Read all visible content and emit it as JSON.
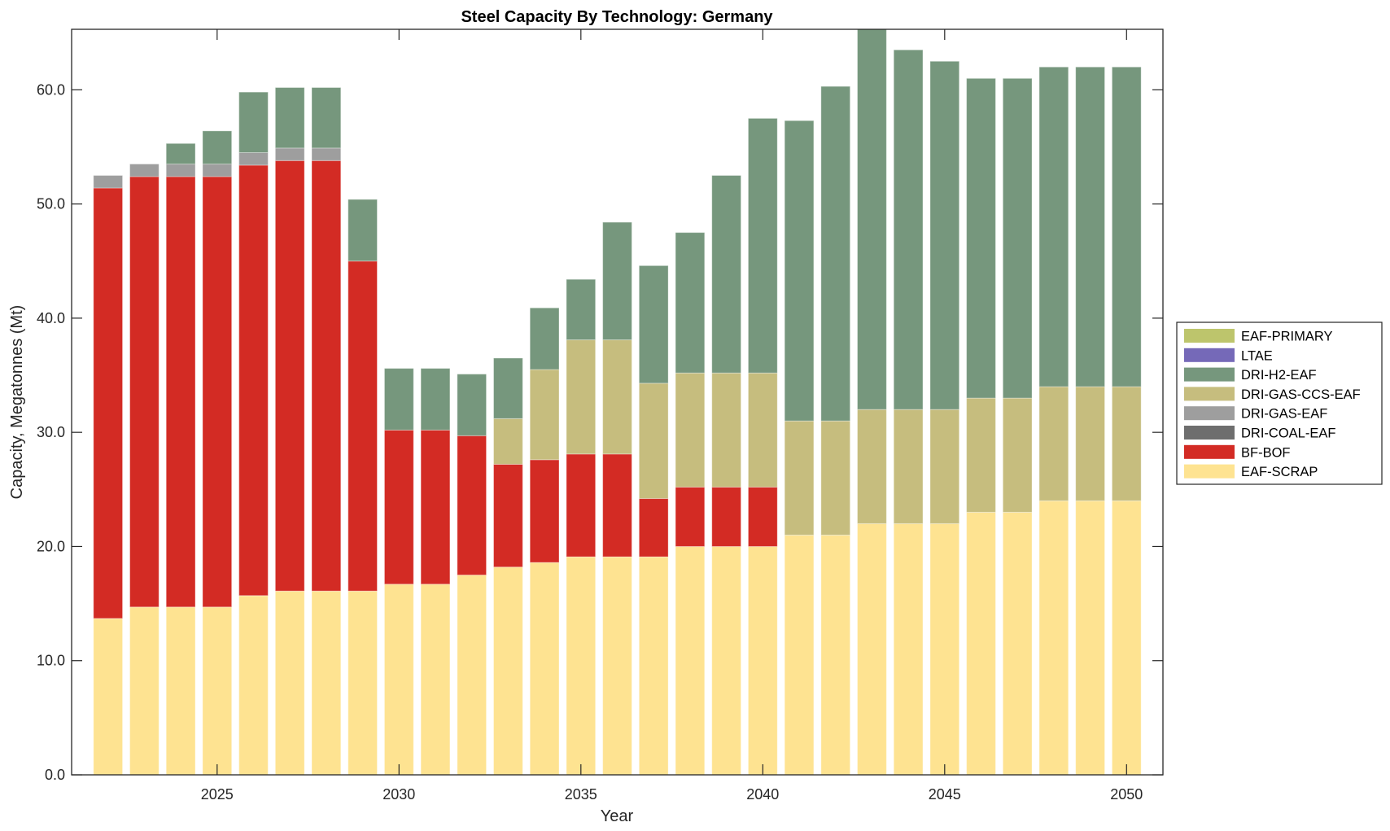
{
  "chart_data": {
    "type": "bar",
    "stacked": true,
    "title": "Steel Capacity By Technology: Germany",
    "xlabel": "Year",
    "ylabel": "Capacity, Megatonnes (Mt)",
    "xlim": [
      2021,
      2051
    ],
    "ylim": [
      0,
      65.3
    ],
    "xticks": [
      2025,
      2030,
      2035,
      2040,
      2045,
      2050
    ],
    "xtick_labels": [
      "2025",
      "2030",
      "2035",
      "2040",
      "2045",
      "2050"
    ],
    "yticks": [
      0,
      10,
      20,
      30,
      40,
      50,
      60
    ],
    "ytick_labels": [
      "0.0",
      "10.0",
      "20.0",
      "30.0",
      "40.0",
      "50.0",
      "60.0"
    ],
    "grid": false,
    "legend_position": "right-outside",
    "categories": [
      2022,
      2023,
      2024,
      2025,
      2026,
      2027,
      2028,
      2029,
      2030,
      2031,
      2032,
      2033,
      2034,
      2035,
      2036,
      2037,
      2038,
      2039,
      2040,
      2041,
      2042,
      2043,
      2044,
      2045,
      2046,
      2047,
      2048,
      2049,
      2050
    ],
    "series": [
      {
        "name": "EAF-SCRAP",
        "color": "#fee391",
        "values": [
          13.7,
          14.7,
          14.7,
          14.7,
          15.7,
          16.1,
          16.1,
          16.1,
          16.7,
          16.7,
          17.5,
          18.2,
          18.6,
          19.1,
          19.1,
          19.1,
          20.0,
          20.0,
          20.0,
          21.0,
          21.0,
          22.0,
          22.0,
          22.0,
          23.0,
          23.0,
          24.0,
          24.0,
          24.0
        ]
      },
      {
        "name": "BF-BOF",
        "color": "#d32b24",
        "values": [
          37.7,
          37.7,
          37.7,
          37.7,
          37.7,
          37.7,
          37.7,
          28.9,
          13.5,
          13.5,
          12.2,
          9.0,
          9.0,
          9.0,
          9.0,
          5.1,
          5.2,
          5.2,
          5.2,
          0,
          0,
          0,
          0,
          0,
          0,
          0,
          0,
          0,
          0
        ]
      },
      {
        "name": "DRI-COAL-EAF",
        "color": "#6e6e6e",
        "values": [
          0,
          0,
          0,
          0,
          0,
          0,
          0,
          0,
          0,
          0,
          0,
          0,
          0,
          0,
          0,
          0,
          0,
          0,
          0,
          0,
          0,
          0,
          0,
          0,
          0,
          0,
          0,
          0,
          0
        ]
      },
      {
        "name": "DRI-GAS-EAF",
        "color": "#9e9e9e",
        "values": [
          1.1,
          1.1,
          1.1,
          1.1,
          1.1,
          1.1,
          1.1,
          0,
          0,
          0,
          0,
          0,
          0,
          0,
          0,
          0,
          0,
          0,
          0,
          0,
          0,
          0,
          0,
          0,
          0,
          0,
          0,
          0,
          0
        ]
      },
      {
        "name": "DRI-GAS-CCS-EAF",
        "color": "#c6bd7e",
        "values": [
          0,
          0,
          0,
          0,
          0,
          0,
          0,
          0,
          0,
          0,
          0,
          4.0,
          7.9,
          10.0,
          10.0,
          10.1,
          10.0,
          10.0,
          10.0,
          10.0,
          10.0,
          10.0,
          10.0,
          10.0,
          10.0,
          10.0,
          10.0,
          10.0,
          10.0
        ]
      },
      {
        "name": "DRI-H2-EAF",
        "color": "#76977d",
        "values": [
          0,
          0,
          1.8,
          2.9,
          5.3,
          5.3,
          5.3,
          5.4,
          5.4,
          5.4,
          5.4,
          5.3,
          5.4,
          5.3,
          10.3,
          10.3,
          12.3,
          17.3,
          22.3,
          26.3,
          29.3,
          34.0,
          31.5,
          30.5,
          28.0,
          28.0,
          28.0,
          28.0,
          28.0
        ]
      },
      {
        "name": "LTAE",
        "color": "#7569b8",
        "values": [
          0,
          0,
          0,
          0,
          0,
          0,
          0,
          0,
          0,
          0,
          0,
          0,
          0,
          0,
          0,
          0,
          0,
          0,
          0,
          0,
          0,
          0,
          0,
          0,
          0,
          0,
          0,
          0,
          0
        ]
      },
      {
        "name": "EAF-PRIMARY",
        "color": "#bdc56c",
        "values": [
          0,
          0,
          0,
          0,
          0,
          0,
          0,
          0,
          0,
          0,
          0,
          0,
          0,
          0,
          0,
          0,
          0,
          0,
          0,
          0,
          0,
          0,
          0,
          0,
          0,
          0,
          0,
          0,
          0
        ]
      }
    ],
    "legend_order": [
      "EAF-PRIMARY",
      "LTAE",
      "DRI-H2-EAF",
      "DRI-GAS-CCS-EAF",
      "DRI-GAS-EAF",
      "DRI-COAL-EAF",
      "BF-BOF",
      "EAF-SCRAP"
    ]
  }
}
